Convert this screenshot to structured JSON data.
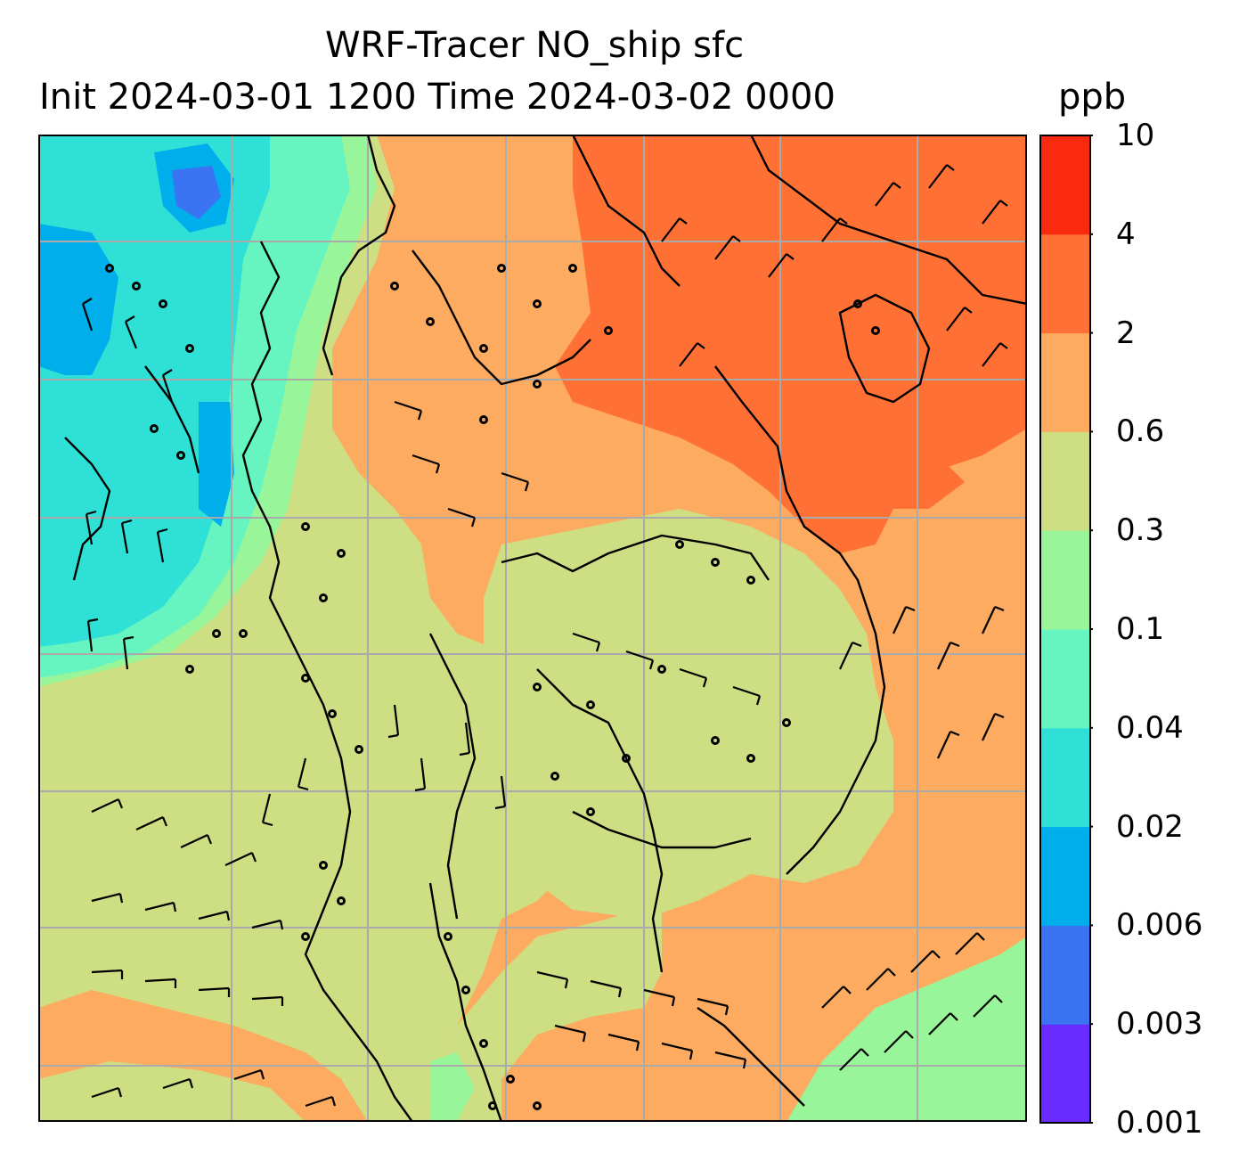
{
  "title": {
    "line1": "WRF-Tracer NO_ship sfc",
    "line2": "Init 2024-03-01 1200 Time 2024-03-02 0000",
    "units": "ppb"
  },
  "colorbar": {
    "levels": [
      "0.001",
      "0.003",
      "0.006",
      "0.02",
      "0.04",
      "0.1",
      "0.3",
      "0.6",
      "2",
      "4",
      "10"
    ],
    "colors": [
      "#6a2bff",
      "#3a74f2",
      "#00aeeb",
      "#2fe0d6",
      "#66f5c0",
      "#99f59a",
      "#cddf82",
      "#fcab60",
      "#ff7035",
      "#fa2a10"
    ]
  },
  "map": {
    "variable": "NO_ship",
    "level": "sfc",
    "gridlines": true,
    "wind_barbs": true,
    "coastlines": true,
    "field_colors": {
      "lowest_blue": "#3a74f2",
      "cyan": "#2fe0d6",
      "aqua": "#66f5c0",
      "light_green": "#99f59a",
      "yellow_green": "#cddf82",
      "orange": "#fcab60",
      "dark_orange": "#ff7035",
      "red": "#fa2a10",
      "gridline": "#aaaaaa"
    }
  }
}
